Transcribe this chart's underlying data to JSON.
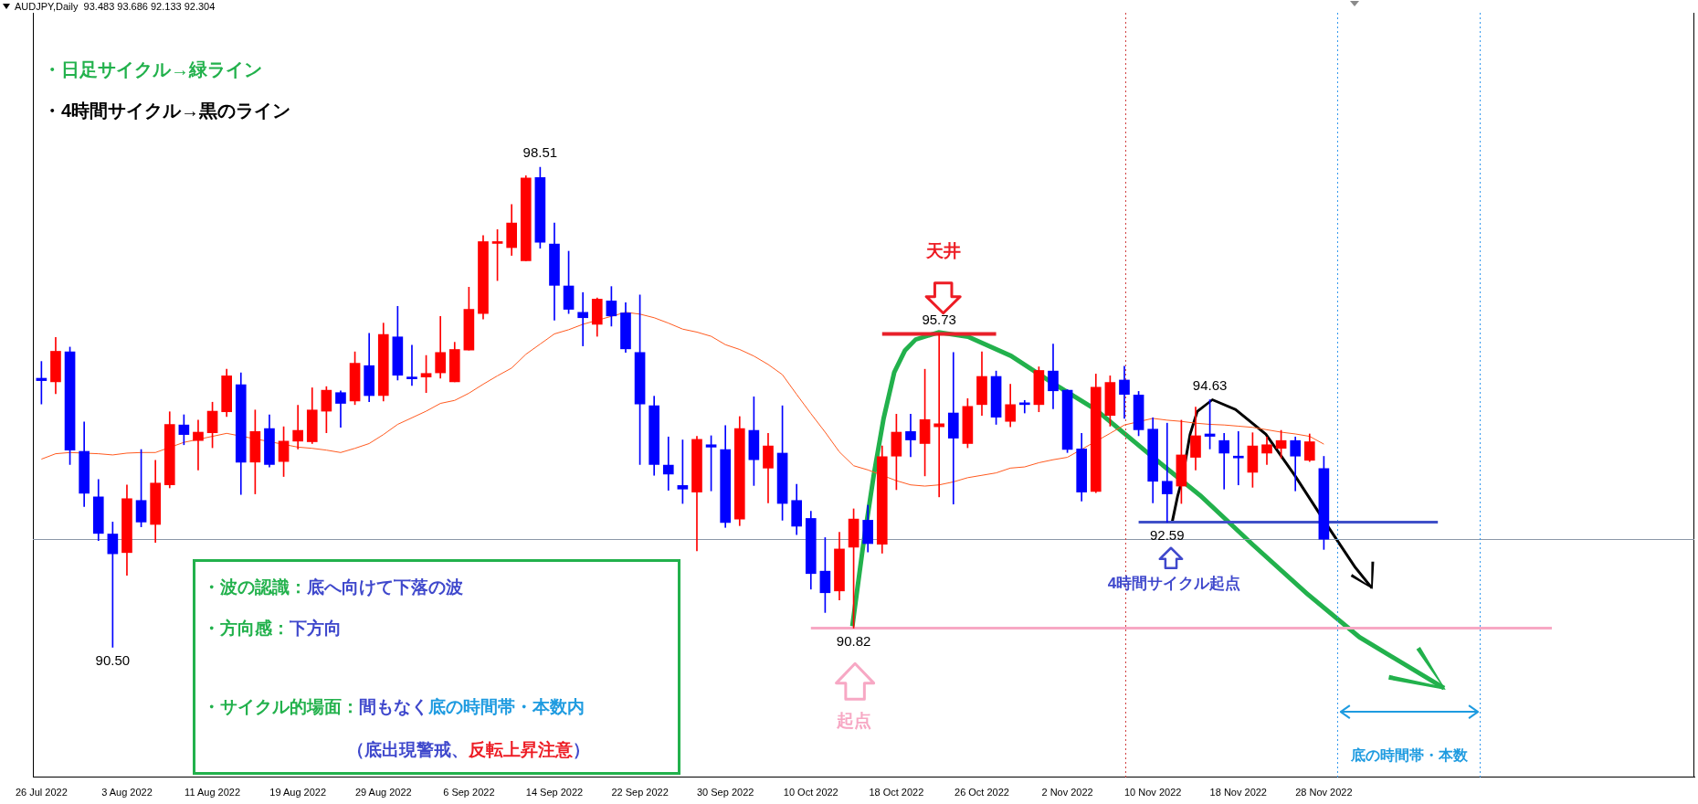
{
  "chart_data": {
    "type": "candlestick",
    "title": "AUDJPY,Daily  93.483 93.686 92.133 92.304",
    "categories": [
      "26 Jul 2022",
      null,
      null,
      null,
      null,
      null,
      "3 Aug 2022",
      null,
      null,
      null,
      null,
      null,
      "11 Aug 2022",
      null,
      null,
      null,
      null,
      null,
      "19 Aug 2022",
      null,
      null,
      null,
      null,
      null,
      "29 Aug 2022",
      null,
      null,
      null,
      null,
      null,
      "6 Sep 2022",
      null,
      null,
      null,
      null,
      null,
      "14 Sep 2022",
      null,
      null,
      null,
      null,
      null,
      "22 Sep 2022",
      null,
      null,
      null,
      null,
      null,
      "30 Sep 2022",
      null,
      null,
      null,
      null,
      null,
      "10 Oct 2022",
      null,
      null,
      null,
      null,
      null,
      "18 Oct 2022",
      null,
      null,
      null,
      null,
      null,
      "26 Oct 2022",
      null,
      null,
      null,
      null,
      null,
      "2 Nov 2022",
      null,
      null,
      null,
      null,
      null,
      "10 Nov 2022",
      null,
      null,
      null,
      null,
      null,
      "18 Nov 2022",
      null,
      null,
      null,
      null,
      null,
      "28 Nov 2022",
      null,
      null,
      null,
      null,
      null,
      null,
      null,
      null,
      null,
      null,
      null,
      null,
      null,
      null,
      null,
      null,
      null,
      null,
      null,
      null,
      null,
      null,
      null,
      null,
      null,
      null
    ],
    "series": [
      {
        "ohlc": [
          [
            94.99,
            95.27,
            94.56,
            94.95
          ],
          [
            94.93,
            95.67,
            94.73,
            95.44
          ],
          [
            95.43,
            95.51,
            93.55,
            93.79
          ],
          [
            93.77,
            94.26,
            92.85,
            93.07
          ],
          [
            93.01,
            93.3,
            92.28,
            92.4
          ],
          [
            92.39,
            92.59,
            90.5,
            92.06
          ],
          [
            92.08,
            93.21,
            91.7,
            92.98
          ],
          [
            92.95,
            93.8,
            92.51,
            92.59
          ],
          [
            92.55,
            93.62,
            92.25,
            93.24
          ],
          [
            93.21,
            94.43,
            93.16,
            94.22
          ],
          [
            94.21,
            94.38,
            93.88,
            94.05
          ],
          [
            93.95,
            94.29,
            93.46,
            94.09
          ],
          [
            94.08,
            94.59,
            93.83,
            94.44
          ],
          [
            94.43,
            95.14,
            94.35,
            95.03
          ],
          [
            94.88,
            95.08,
            93.05,
            93.59
          ],
          [
            93.59,
            94.46,
            93.06,
            94.1
          ],
          [
            94.15,
            94.38,
            93.51,
            93.55
          ],
          [
            93.6,
            94.18,
            93.35,
            93.94
          ],
          [
            93.94,
            94.54,
            93.81,
            94.12
          ],
          [
            93.93,
            94.83,
            93.9,
            94.46
          ],
          [
            94.44,
            94.85,
            94.08,
            94.79
          ],
          [
            94.75,
            94.78,
            94.17,
            94.57
          ],
          [
            94.61,
            95.43,
            94.55,
            95.24
          ],
          [
            95.2,
            95.74,
            94.6,
            94.7
          ],
          [
            94.7,
            95.91,
            94.61,
            95.72
          ],
          [
            95.68,
            96.19,
            94.96,
            95.04
          ],
          [
            95.01,
            95.54,
            94.87,
            94.98
          ],
          [
            95.01,
            95.37,
            94.75,
            95.07
          ],
          [
            95.08,
            96.02,
            94.99,
            95.42
          ],
          [
            94.93,
            95.59,
            94.93,
            95.47
          ],
          [
            95.46,
            96.51,
            95.46,
            96.14
          ],
          [
            96.07,
            97.37,
            95.98,
            97.27
          ],
          [
            97.24,
            97.47,
            96.62,
            97.25
          ],
          [
            97.17,
            97.89,
            97.04,
            97.58
          ],
          [
            96.95,
            98.37,
            96.95,
            98.33
          ],
          [
            98.34,
            98.51,
            97.16,
            97.26
          ],
          [
            97.23,
            97.58,
            95.96,
            96.54
          ],
          [
            96.53,
            97.11,
            96.07,
            96.14
          ],
          [
            96.09,
            96.42,
            95.53,
            96.0
          ],
          [
            95.89,
            96.33,
            95.69,
            96.31
          ],
          [
            96.28,
            96.52,
            95.86,
            96.03
          ],
          [
            96.08,
            96.25,
            95.42,
            95.48
          ],
          [
            95.42,
            96.38,
            93.55,
            94.56
          ],
          [
            94.53,
            94.69,
            93.37,
            93.55
          ],
          [
            93.54,
            94.01,
            93.12,
            93.39
          ],
          [
            93.2,
            93.96,
            92.9,
            93.14
          ],
          [
            93.09,
            94.02,
            92.11,
            93.97
          ],
          [
            93.88,
            94.03,
            93.11,
            93.84
          ],
          [
            93.8,
            94.2,
            92.5,
            92.58
          ],
          [
            92.64,
            94.35,
            92.53,
            94.15
          ],
          [
            94.12,
            94.68,
            93.2,
            93.63
          ],
          [
            93.49,
            94.07,
            92.91,
            93.86
          ],
          [
            93.74,
            94.53,
            92.62,
            92.9
          ],
          [
            92.95,
            93.22,
            92.38,
            92.52
          ],
          [
            92.65,
            92.77,
            91.47,
            91.73
          ],
          [
            91.77,
            92.33,
            91.08,
            91.41
          ],
          [
            91.44,
            92.42,
            91.29,
            92.14
          ],
          [
            92.17,
            92.81,
            90.82,
            92.64
          ],
          [
            92.62,
            92.87,
            92.09,
            92.23
          ],
          [
            92.22,
            93.86,
            92.07,
            93.68
          ],
          [
            93.69,
            94.39,
            93.13,
            94.09
          ],
          [
            94.1,
            94.39,
            93.68,
            93.96
          ],
          [
            93.9,
            95.14,
            93.36,
            94.3
          ],
          [
            94.18,
            95.73,
            93.01,
            94.23
          ],
          [
            94.41,
            95.42,
            92.89,
            93.99
          ],
          [
            93.9,
            94.65,
            93.83,
            94.52
          ],
          [
            94.55,
            95.43,
            94.37,
            95.02
          ],
          [
            95.02,
            95.11,
            94.22,
            94.34
          ],
          [
            94.27,
            94.89,
            94.18,
            94.55
          ],
          [
            94.56,
            94.62,
            94.41,
            94.55
          ],
          [
            94.55,
            95.18,
            94.43,
            95.12
          ],
          [
            95.11,
            95.56,
            94.48,
            94.78
          ],
          [
            94.79,
            94.8,
            93.75,
            93.8
          ],
          [
            93.81,
            94.07,
            92.94,
            93.09
          ],
          [
            93.1,
            95.06,
            93.08,
            94.84
          ],
          [
            94.37,
            95.03,
            94.19,
            94.92
          ],
          [
            94.96,
            95.19,
            94.32,
            94.72
          ],
          [
            94.71,
            94.77,
            94.03,
            94.13
          ],
          [
            94.14,
            94.33,
            92.91,
            93.27
          ],
          [
            93.27,
            94.24,
            92.59,
            93.06
          ],
          [
            93.19,
            94.29,
            92.9,
            93.71
          ],
          [
            93.67,
            94.51,
            93.46,
            94.03
          ],
          [
            94.06,
            94.63,
            93.81,
            94.02
          ],
          [
            93.95,
            94.07,
            93.14,
            93.74
          ],
          [
            93.68,
            94.1,
            93.21,
            93.66
          ],
          [
            93.42,
            94.08,
            93.17,
            93.86
          ],
          [
            93.74,
            94.01,
            93.55,
            93.88
          ],
          [
            93.82,
            94.12,
            93.66,
            93.95
          ],
          [
            93.95,
            94.01,
            93.11,
            93.69
          ],
          [
            93.62,
            94.06,
            93.6,
            93.93
          ],
          [
            93.483,
            93.686,
            92.133,
            92.304
          ],
          null,
          null,
          null,
          null,
          null,
          null,
          null,
          null,
          null,
          null,
          null,
          null,
          null,
          null,
          null,
          null,
          null,
          null,
          null,
          null,
          null,
          null,
          null,
          null,
          null,
          null
        ],
        "colors": [
          "#0000ff",
          "#ff0000",
          "#0000ff",
          "#0000ff",
          "#0000ff",
          "#0000ff",
          "#ff0000",
          "#0000ff",
          "#ff0000",
          "#ff0000",
          "#0000ff",
          "#ff0000",
          "#ff0000",
          "#ff0000",
          "#0000ff",
          "#ff0000",
          "#0000ff",
          "#ff0000",
          "#ff0000",
          "#ff0000",
          "#ff0000",
          "#0000ff",
          "#ff0000",
          "#0000ff",
          "#ff0000",
          "#0000ff",
          "#0000ff",
          "#ff0000",
          "#ff0000",
          "#ff0000",
          "#ff0000",
          "#ff0000",
          "#ff0000",
          "#ff0000",
          "#ff0000",
          "#0000ff",
          "#0000ff",
          "#0000ff",
          "#0000ff",
          "#ff0000",
          "#0000ff",
          "#0000ff",
          "#0000ff",
          "#0000ff",
          "#0000ff",
          "#0000ff",
          "#ff0000",
          "#0000ff",
          "#0000ff",
          "#ff0000",
          "#0000ff",
          "#ff0000",
          "#0000ff",
          "#0000ff",
          "#0000ff",
          "#0000ff",
          "#ff0000",
          "#ff0000",
          "#0000ff",
          "#ff0000",
          "#ff0000",
          "#0000ff",
          "#ff0000",
          "#ff0000",
          "#0000ff",
          "#ff0000",
          "#ff0000",
          "#0000ff",
          "#ff0000",
          "#0000ff",
          "#ff0000",
          "#0000ff",
          "#0000ff",
          "#0000ff",
          "#ff0000",
          "#ff0000",
          "#0000ff",
          "#0000ff",
          "#0000ff",
          "#0000ff",
          "#ff0000",
          "#ff0000",
          "#0000ff",
          "#0000ff",
          "#0000ff",
          "#ff0000",
          "#ff0000",
          "#ff0000",
          "#0000ff",
          "#ff0000",
          "#0000ff",
          null,
          null,
          null,
          null,
          null,
          null,
          null,
          null,
          null,
          null,
          null,
          null,
          null,
          null,
          null,
          null,
          null,
          null,
          null,
          null,
          null,
          null,
          null,
          null,
          null,
          null
        ]
      },
      {
        "type": "line",
        "color": "#ff5a1f",
        "values": [
          93.64,
          93.73,
          93.75,
          null,
          93.73,
          93.71,
          93.74,
          93.75,
          93.75,
          null,
          93.92,
          93.97,
          94.02,
          94.07,
          null,
          null,
          null,
          null,
          93.84,
          93.82,
          93.79,
          93.75,
          93.82,
          93.9,
          94.05,
          94.22,
          94.33,
          94.44,
          94.57,
          94.62,
          94.74,
          94.89,
          95.03,
          95.16,
          95.39,
          95.56,
          95.73,
          95.8,
          95.89,
          null,
          null,
          96.09,
          96.06,
          96.0,
          95.91,
          95.81,
          95.76,
          95.69,
          95.55,
          95.47,
          95.36,
          95.22,
          95.05,
          94.72,
          94.4,
          94.09,
          93.76,
          93.53,
          93.46,
          null,
          93.28,
          93.21,
          93.19,
          93.21,
          93.26,
          93.33,
          93.37,
          93.41,
          93.49,
          93.51,
          93.58,
          93.63,
          93.67,
          null,
          null,
          94.07,
          94.21,
          null,
          94.32,
          94.29,
          94.27,
          94.24,
          94.22,
          94.21,
          94.19,
          94.17,
          94.13,
          94.09,
          94.06,
          94.02,
          93.89,
          null,
          null,
          null,
          null,
          null,
          null,
          null,
          null,
          null,
          null,
          null,
          null,
          null,
          null,
          null,
          null,
          null,
          null,
          null,
          null,
          null,
          null,
          null,
          null,
          null,
          null
        ]
      },
      {
        "type": "line",
        "color": "#e8202a",
        "values": [
          null,
          null,
          null,
          null,
          null,
          null,
          null,
          null,
          null,
          null,
          null,
          null,
          null,
          null,
          null,
          null,
          null,
          null,
          null,
          null,
          null,
          null,
          null,
          null,
          null,
          null,
          null,
          null,
          null,
          null,
          null,
          null,
          null,
          null,
          null,
          null,
          null,
          null,
          null,
          null,
          null,
          null,
          null,
          null,
          null,
          null,
          null,
          null,
          null,
          null,
          null,
          null,
          null,
          null,
          null,
          null,
          null,
          null,
          null,
          95.73,
          95.73,
          95.73,
          95.73,
          95.73,
          95.73,
          95.73,
          95.73,
          95.73,
          null,
          null,
          null,
          null,
          null,
          null,
          null,
          null,
          null,
          null,
          null,
          null,
          null,
          null,
          null,
          null,
          null,
          null,
          null,
          null,
          null,
          null,
          null,
          null,
          null,
          null,
          null,
          null,
          null,
          null,
          null,
          null,
          null,
          null,
          null,
          null,
          null,
          null,
          null,
          null,
          null,
          null,
          null,
          null,
          null,
          null,
          null,
          null,
          null
        ]
      },
      {
        "type": "line",
        "color": "#f7a8c4",
        "values": [
          null,
          null,
          null,
          null,
          null,
          null,
          null,
          null,
          null,
          null,
          null,
          null,
          null,
          null,
          null,
          null,
          null,
          null,
          null,
          null,
          null,
          null,
          null,
          null,
          null,
          null,
          null,
          null,
          null,
          null,
          null,
          null,
          null,
          null,
          null,
          null,
          null,
          null,
          null,
          null,
          null,
          null,
          null,
          null,
          null,
          null,
          null,
          null,
          null,
          null,
          null,
          null,
          null,
          null,
          90.82,
          90.82,
          90.82,
          90.82,
          90.82,
          90.82,
          90.82,
          90.82,
          90.82,
          90.82,
          90.82,
          90.82,
          90.82,
          90.82,
          90.82,
          90.82,
          90.82,
          90.82,
          90.82,
          90.82,
          90.82,
          90.82,
          90.82,
          90.82,
          90.82,
          90.82,
          90.82,
          90.82,
          90.82,
          90.82,
          90.82,
          90.82,
          90.82,
          90.82,
          90.82,
          90.82,
          90.82,
          90.82,
          90.82,
          90.82,
          90.82,
          90.82,
          90.82,
          90.82,
          90.82,
          90.82,
          90.82,
          90.82,
          90.82,
          90.82,
          90.82,
          90.82,
          90.82,
          null,
          null,
          null,
          null,
          null,
          null,
          null,
          null,
          null,
          null
        ]
      },
      {
        "type": "line",
        "color": "#4050c8",
        "values": [
          null,
          null,
          null,
          null,
          null,
          null,
          null,
          null,
          null,
          null,
          null,
          null,
          null,
          null,
          null,
          null,
          null,
          null,
          null,
          null,
          null,
          null,
          null,
          null,
          null,
          null,
          null,
          null,
          null,
          null,
          null,
          null,
          null,
          null,
          null,
          null,
          null,
          null,
          null,
          null,
          null,
          null,
          null,
          null,
          null,
          null,
          null,
          null,
          null,
          null,
          null,
          null,
          null,
          null,
          null,
          null,
          null,
          null,
          null,
          null,
          null,
          null,
          null,
          null,
          null,
          null,
          null,
          null,
          null,
          null,
          null,
          null,
          null,
          null,
          null,
          null,
          null,
          92.59,
          92.59,
          92.59,
          92.59,
          92.59,
          92.59,
          92.59,
          92.59,
          92.59,
          92.59,
          92.59,
          92.59,
          92.59,
          null,
          92.59,
          92.59,
          92.59,
          92.59,
          92.59,
          92.59,
          92.59,
          92.59,
          null,
          null,
          null,
          null,
          null,
          null,
          null,
          null,
          null,
          null,
          null,
          null,
          null,
          null,
          null,
          null,
          null,
          null
        ]
      }
    ],
    "ref_lines": [
      {
        "axis": "y",
        "value": 92.304,
        "color": "#8c98a8"
      }
    ],
    "annotations": [
      "・日足サイクル→緑ライン",
      "・4時間サイクル→黒のライン",
      "天井",
      "起点",
      "4時間サイクル起点",
      "底の時間帯・本数",
      "・波の認識：",
      "底へ向けて下落の波",
      "・方向感：",
      "下方向",
      "・サイクル的場面：",
      "間もなく",
      "底の時間帯・本数内",
      "（底出現警戒、",
      "反転上昇注意",
      "）",
      {
        "text": "98.51",
        "y": 98.51
      },
      {
        "text": "90.50",
        "y": 90.5
      },
      {
        "text": "95.73",
        "y": 95.73
      },
      {
        "text": "90.82",
        "y": 90.82
      },
      {
        "text": "94.63",
        "y": 94.63
      },
      {
        "text": "92.59",
        "y": 92.59
      }
    ]
  }
}
